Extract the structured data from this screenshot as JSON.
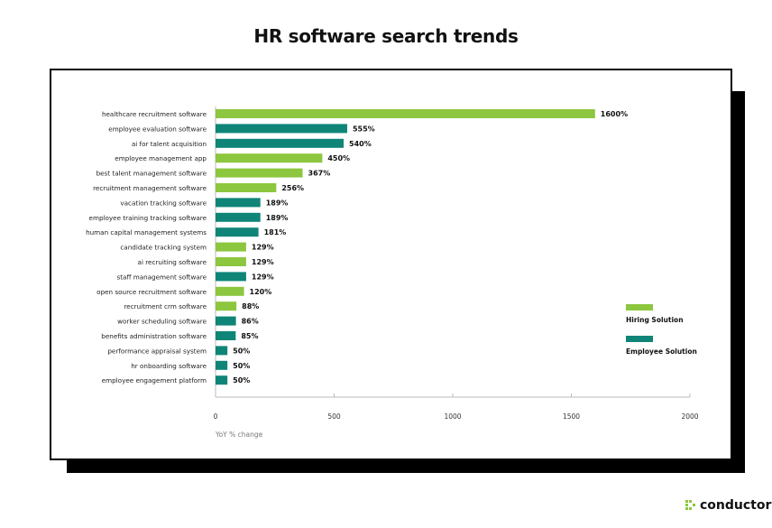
{
  "brand": {
    "name": "conductor",
    "accent": "#8dc63f"
  },
  "chart_data": {
    "type": "bar",
    "orientation": "horizontal",
    "title": "HR software search trends",
    "xlabel": "YoY % change",
    "xlim": [
      0,
      2000
    ],
    "xticks": [
      0,
      500,
      1000,
      1500,
      2000
    ],
    "grid": false,
    "legend_position": "right",
    "legend": [
      {
        "name": "Hiring Solution",
        "color": "#8dc63f"
      },
      {
        "name": "Employee Solution",
        "color": "#0e8577"
      }
    ],
    "bars": [
      {
        "label": "healthcare recruitment software",
        "value": 1600,
        "text": "1600%",
        "group": "Hiring Solution"
      },
      {
        "label": "employee evaluation software",
        "value": 555,
        "text": "555%",
        "group": "Employee Solution"
      },
      {
        "label": "ai for talent acquisition",
        "value": 540,
        "text": "540%",
        "group": "Employee Solution"
      },
      {
        "label": "employee management app",
        "value": 450,
        "text": "450%",
        "group": "Hiring Solution"
      },
      {
        "label": "best talent management software",
        "value": 367,
        "text": "367%",
        "group": "Hiring Solution"
      },
      {
        "label": "recruitment management software",
        "value": 256,
        "text": "256%",
        "group": "Hiring Solution"
      },
      {
        "label": "vacation tracking software",
        "value": 189,
        "text": "189%",
        "group": "Employee Solution"
      },
      {
        "label": "employee training tracking software",
        "value": 189,
        "text": "189%",
        "group": "Employee Solution"
      },
      {
        "label": "human capital management systems",
        "value": 181,
        "text": "181%",
        "group": "Employee Solution"
      },
      {
        "label": "candidate tracking system",
        "value": 129,
        "text": "129%",
        "group": "Hiring Solution"
      },
      {
        "label": "ai recruiting software",
        "value": 129,
        "text": "129%",
        "group": "Hiring Solution"
      },
      {
        "label": "staff management software",
        "value": 129,
        "text": "129%",
        "group": "Employee Solution"
      },
      {
        "label": "open source recruitment software",
        "value": 120,
        "text": "120%",
        "group": "Hiring Solution"
      },
      {
        "label": "recruitment crm software",
        "value": 88,
        "text": "88%",
        "group": "Hiring Solution"
      },
      {
        "label": "worker scheduling software",
        "value": 86,
        "text": "86%",
        "group": "Employee Solution"
      },
      {
        "label": "benefits administration software",
        "value": 85,
        "text": "85%",
        "group": "Employee Solution"
      },
      {
        "label": "performance appraisal system",
        "value": 50,
        "text": "50%",
        "group": "Employee Solution"
      },
      {
        "label": "hr onboarding software",
        "value": 50,
        "text": "50%",
        "group": "Employee Solution"
      },
      {
        "label": "employee engagement platform",
        "value": 50,
        "text": "50%",
        "group": "Employee Solution"
      }
    ]
  }
}
